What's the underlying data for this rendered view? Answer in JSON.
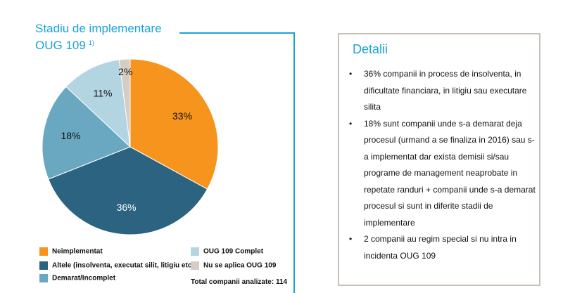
{
  "title": {
    "line1": "Stadiu de implementare",
    "line2": "OUG 109",
    "superscript": "1)"
  },
  "chart_data": {
    "type": "pie",
    "slices": [
      {
        "label": "Neimplementat",
        "value": 33,
        "display": "33%",
        "color": "#f7941d"
      },
      {
        "label": "Altele (insolventa, executat silit, litigiu etc.)",
        "value": 36,
        "display": "36%",
        "color": "#2c6380"
      },
      {
        "label": "Demarat/Incomplet",
        "value": 18,
        "display": "18%",
        "color": "#6aa8c2"
      },
      {
        "label": "OUG 109 Complet",
        "value": 11,
        "display": "11%",
        "color": "#b3d4e1"
      },
      {
        "label": "Nu se aplica OUG 109",
        "value": 2,
        "display": "2%",
        "color": "#d6ccc4"
      }
    ],
    "label_colors": [
      "#111111",
      "#ffffff",
      "#111111",
      "#111111",
      "#111111"
    ]
  },
  "legend": {
    "items": [
      {
        "label": "Neimplementat",
        "color": "#f7941d"
      },
      {
        "label": "Altele (insolventa, executat silit, litigiu etc.)",
        "color": "#2c6380"
      },
      {
        "label": "Demarat/Incomplet",
        "color": "#6aa8c2"
      },
      {
        "label": "OUG 109 Complet",
        "color": "#b3d4e1"
      },
      {
        "label": "Nu se aplica OUG 109",
        "color": "#d6ccc4"
      }
    ],
    "total": "Total companii analizate: 114"
  },
  "details": {
    "title": "Detalii",
    "bullet": "•",
    "items": [
      "36% companii in process de insolventa, in dificultate financiara, in litigiu sau executare silita",
      "18% sunt companii unde s-a demarat deja procesul (urmand a se finaliza in 2016) sau s-a implementat dar exista demisii si/sau programe de management neaprobate in repetate randuri + companii unde s-a demarat procesul si sunt in diferite stadii de implementare",
      "2 companii au regim special si nu intra in incidenta OUG 109"
    ]
  },
  "colors": {
    "accent": "#1aa3d9",
    "box_border": "#c9c0b9"
  }
}
